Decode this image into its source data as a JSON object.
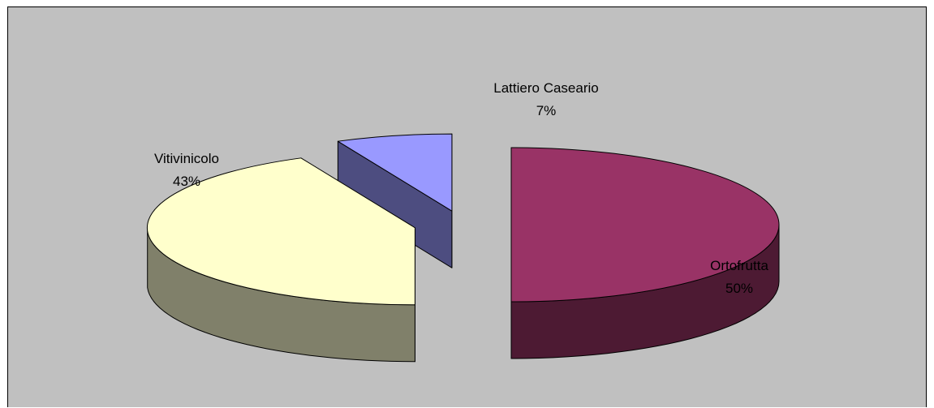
{
  "chart_data": {
    "type": "pie",
    "style": "3d-exploded",
    "legend": "none",
    "slices": [
      {
        "name": "Ortofrutta",
        "value": 50,
        "percent_label": "50%",
        "top_color": "#993366",
        "side_color": "#4d1a33"
      },
      {
        "name": "Vitivinicolo",
        "value": 43,
        "percent_label": "43%",
        "top_color": "#ffffcc",
        "side_color": "#80806a"
      },
      {
        "name": "Lattiero Caseario",
        "value": 7,
        "percent_label": "7%",
        "top_color": "#9999ff",
        "side_color": "#4d4d80"
      }
    ]
  },
  "colors": {
    "plot_background": "#c0c0c0",
    "frame_border": "#000000"
  }
}
